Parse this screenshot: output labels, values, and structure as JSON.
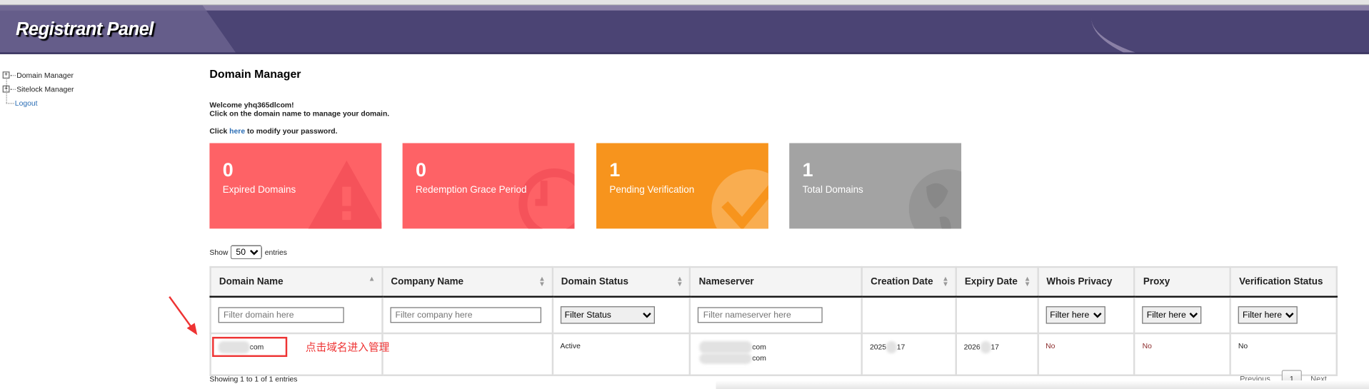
{
  "header": {
    "title": "Registrant Panel"
  },
  "sidebar": {
    "items": [
      {
        "label": "Domain Manager",
        "icon": "plus-box-icon"
      },
      {
        "label": "Sitelock Manager",
        "icon": "plus-box-icon"
      },
      {
        "label": "Logout"
      }
    ]
  },
  "main": {
    "title": "Domain Manager",
    "welcome": "Welcome yhq365dlcom!",
    "instruction": "Click on the domain name to manage your domain.",
    "password_prefix": "Click",
    "password_link": "here",
    "password_suffix": "to modify your password."
  },
  "cards": [
    {
      "value": "0",
      "label": "Expired Domains",
      "color": "#fe6266",
      "icon": "warning-triangle-icon"
    },
    {
      "value": "0",
      "label": "Redemption Grace Period",
      "color": "#fe6266",
      "icon": "clock-icon"
    },
    {
      "value": "1",
      "label": "Pending Verification",
      "color": "#f7941d",
      "icon": "check-circle-icon"
    },
    {
      "value": "1",
      "label": "Total Domains",
      "color": "#a3a3a3",
      "icon": "globe-icon"
    }
  ],
  "length": {
    "show": "Show",
    "value": "50",
    "entries": "entries"
  },
  "table": {
    "columns": [
      "Domain Name",
      "Company Name",
      "Domain Status",
      "Nameserver",
      "Creation Date",
      "Expiry Date",
      "Whois Privacy",
      "Proxy",
      "Verification Status"
    ],
    "filters": {
      "domain_placeholder": "Filter domain here",
      "company_placeholder": "Filter company here",
      "status": "Filter Status",
      "nameserver_placeholder": "Filter nameserver here",
      "whois": "Filter here",
      "proxy": "Filter here",
      "verification": "Filter here"
    },
    "rows": [
      {
        "domain": "com",
        "company": "",
        "status": "Active",
        "ns1": "com",
        "ns2": "com",
        "created_a": "2025",
        "created_b": "17",
        "expiry_a": "2026",
        "expiry_b": "17",
        "whois": "No",
        "proxy": "No",
        "verification": "No"
      }
    ]
  },
  "annotation": {
    "note": "点击域名进入管理",
    "color": "#ee3333"
  },
  "footer": {
    "info": "Showing 1 to 1 of 1 entries",
    "previous": "Previous",
    "page": "1",
    "next": "Next"
  }
}
